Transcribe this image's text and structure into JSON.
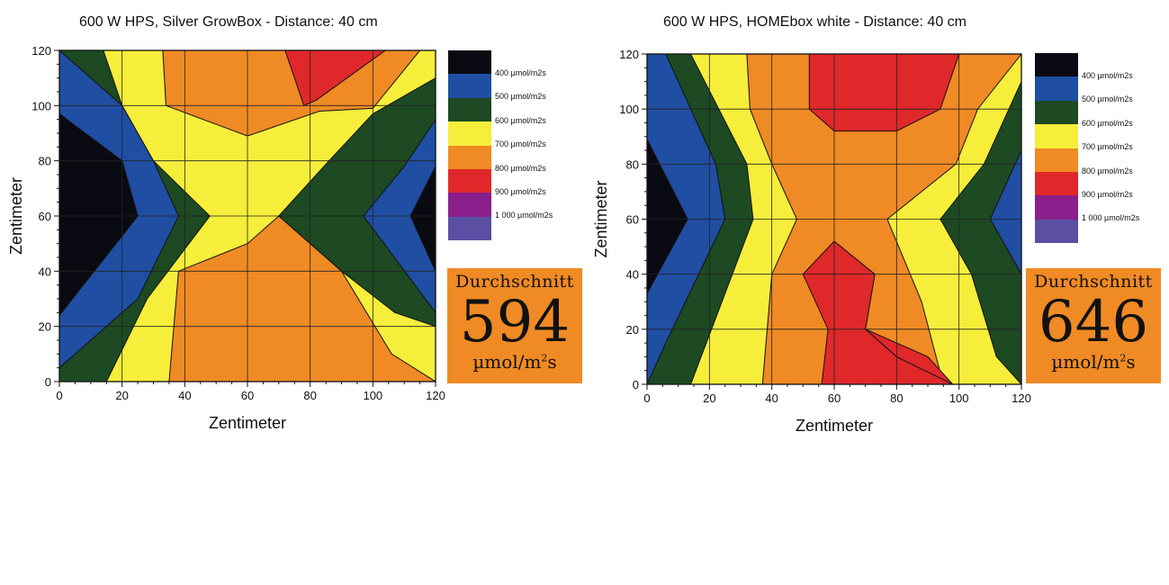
{
  "legend_colors": [
    "#0a0a12",
    "#1f4ea3",
    "#1d4a22",
    "#f6ee3b",
    "#f08a24",
    "#e0282a",
    "#8a1f8b",
    "#5a4fa3"
  ],
  "legend_labels": [
    "400 µmol/m2s",
    "500 µmol/m2s",
    "600 µmol/m2s",
    "700 µmol/m2s",
    "800 µmol/m2s",
    "900 µmol/m2s",
    "1 000 µmol/m2s"
  ],
  "chart_data": [
    {
      "type": "heatmap",
      "title": "600 W HPS, Silver GrowBox - Distance: 40 cm",
      "xlabel": "Zentimeter",
      "ylabel": "Zentimeter",
      "xlim": [
        0,
        120
      ],
      "ylim": [
        0,
        120
      ],
      "xticks": [
        "0",
        "20",
        "40",
        "60",
        "80",
        "100",
        "120"
      ],
      "yticks": [
        "0",
        "20",
        "40",
        "60",
        "80",
        "100",
        "120"
      ],
      "average": {
        "label": "Durchschnitt",
        "value": "594",
        "unit_main": "µmol/m",
        "unit_sup": "2",
        "unit_end": "s"
      },
      "regions": [
        {
          "level": 4,
          "points": [
            [
              0,
              0
            ],
            [
              120,
              0
            ],
            [
              120,
              120
            ],
            [
              0,
              120
            ]
          ]
        },
        {
          "level": 3,
          "points": [
            [
              0,
              0
            ],
            [
              35,
              0
            ],
            [
              38,
              40
            ],
            [
              60,
              50
            ],
            [
              70,
              60
            ],
            [
              90,
              40
            ],
            [
              106,
              10
            ],
            [
              120,
              0
            ],
            [
              120,
              120
            ],
            [
              115,
              120
            ],
            [
              100,
              99
            ],
            [
              83,
              98
            ],
            [
              60,
              89
            ],
            [
              34,
              100
            ],
            [
              33,
              120
            ],
            [
              0,
              120
            ]
          ]
        },
        {
          "level": 2,
          "points": [
            [
              0,
              0
            ],
            [
              15,
              0
            ],
            [
              28,
              30
            ],
            [
              48,
              60
            ],
            [
              30,
              80
            ],
            [
              20,
              100
            ],
            [
              14,
              120
            ],
            [
              0,
              120
            ]
          ]
        },
        {
          "level": 2,
          "points": [
            [
              120,
              0
            ],
            [
              120,
              110
            ],
            [
              100,
              97
            ],
            [
              86,
              80
            ],
            [
              70,
              60
            ],
            [
              90,
              40
            ],
            [
              107,
              25
            ],
            [
              120,
              20
            ]
          ]
        },
        {
          "level": 1,
          "points": [
            [
              0,
              5
            ],
            [
              25,
              30
            ],
            [
              38,
              60
            ],
            [
              30,
              80
            ],
            [
              20,
              100
            ],
            [
              0,
              120
            ]
          ]
        },
        {
          "level": 1,
          "points": [
            [
              120,
              25
            ],
            [
              97,
              60
            ],
            [
              110,
              78
            ],
            [
              120,
              95
            ]
          ]
        },
        {
          "level": 0,
          "points": [
            [
              0,
              24
            ],
            [
              25,
              60
            ],
            [
              20,
              80
            ],
            [
              0,
              97
            ]
          ]
        },
        {
          "level": 0,
          "points": [
            [
              120,
              40
            ],
            [
              112,
              60
            ],
            [
              120,
              78
            ]
          ]
        },
        {
          "level": 5,
          "points": [
            [
              72,
              120
            ],
            [
              104,
              120
            ],
            [
              82,
              102
            ],
            [
              78,
              100
            ]
          ]
        }
      ]
    },
    {
      "type": "heatmap",
      "title": "600 W HPS, HOMEbox white - Distance: 40 cm",
      "xlabel": "Zentimeter",
      "ylabel": "Zentimeter",
      "xlim": [
        0,
        120
      ],
      "ylim": [
        0,
        120
      ],
      "xticks": [
        "0",
        "20",
        "40",
        "60",
        "80",
        "100",
        "120"
      ],
      "yticks": [
        "0",
        "20",
        "40",
        "60",
        "80",
        "100",
        "120"
      ],
      "average": {
        "label": "Durchschnitt",
        "value": "646",
        "unit_main": "µmol/m",
        "unit_sup": "2",
        "unit_end": "s"
      },
      "regions": [
        {
          "level": 4,
          "points": [
            [
              0,
              0
            ],
            [
              120,
              0
            ],
            [
              120,
              120
            ],
            [
              0,
              120
            ]
          ]
        },
        {
          "level": 3,
          "points": [
            [
              0,
              0
            ],
            [
              37,
              0
            ],
            [
              40,
              40
            ],
            [
              48,
              60
            ],
            [
              40,
              80
            ],
            [
              33,
              100
            ],
            [
              32,
              120
            ],
            [
              0,
              120
            ]
          ]
        },
        {
          "level": 3,
          "points": [
            [
              120,
              0
            ],
            [
              95,
              0
            ],
            [
              88,
              30
            ],
            [
              77,
              60
            ],
            [
              99,
              80
            ],
            [
              106,
              100
            ],
            [
              120,
              120
            ]
          ]
        },
        {
          "level": 2,
          "points": [
            [
              0,
              0
            ],
            [
              14,
              0
            ],
            [
              24,
              30
            ],
            [
              34,
              60
            ],
            [
              32,
              80
            ],
            [
              14,
              120
            ],
            [
              0,
              120
            ]
          ]
        },
        {
          "level": 2,
          "points": [
            [
              120,
              0
            ],
            [
              112,
              10
            ],
            [
              104,
              40
            ],
            [
              94,
              60
            ],
            [
              108,
              80
            ],
            [
              120,
              110
            ]
          ]
        },
        {
          "level": 1,
          "points": [
            [
              0,
              0
            ],
            [
              6,
              15
            ],
            [
              25,
              60
            ],
            [
              22,
              80
            ],
            [
              6,
              120
            ],
            [
              0,
              120
            ]
          ]
        },
        {
          "level": 1,
          "points": [
            [
              120,
              40
            ],
            [
              110,
              60
            ],
            [
              120,
              85
            ]
          ]
        },
        {
          "level": 0,
          "points": [
            [
              0,
              33
            ],
            [
              13,
              60
            ],
            [
              0,
              89
            ]
          ]
        },
        {
          "level": 5,
          "points": [
            [
              56,
              0
            ],
            [
              98,
              0
            ],
            [
              90,
              10
            ],
            [
              70,
              20
            ],
            [
              50,
              40
            ],
            [
              60,
              52
            ],
            [
              73,
              40
            ],
            [
              70,
              20
            ],
            [
              80,
              10
            ]
          ]
        },
        {
          "level": 5,
          "points": [
            [
              50,
              40
            ],
            [
              58,
              20
            ],
            [
              56,
              0
            ],
            [
              98,
              0
            ],
            [
              80,
              10
            ],
            [
              70,
              20
            ],
            [
              73,
              40
            ],
            [
              60,
              52
            ]
          ]
        },
        {
          "level": 5,
          "points": [
            [
              52,
              120
            ],
            [
              100,
              120
            ],
            [
              94,
              100
            ],
            [
              80,
              92
            ],
            [
              60,
              92
            ],
            [
              52,
              100
            ]
          ]
        }
      ]
    }
  ]
}
